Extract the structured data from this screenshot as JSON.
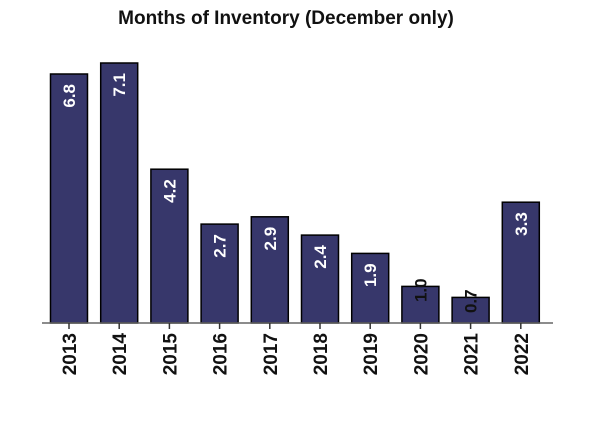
{
  "chart_data": {
    "type": "bar",
    "title": "Months of Inventory (December only)",
    "xlabel": "",
    "ylabel": "",
    "categories": [
      "2013",
      "2014",
      "2015",
      "2016",
      "2017",
      "2018",
      "2019",
      "2020",
      "2021",
      "2022"
    ],
    "values": [
      6.8,
      7.1,
      4.2,
      2.7,
      2.9,
      2.4,
      1.9,
      1.0,
      0.7,
      3.3
    ],
    "data_labels": [
      "6.8",
      "7.1",
      "4.2",
      "2.7",
      "2.9",
      "2.4",
      "1.9",
      "1.0",
      "0.7",
      "3.3"
    ],
    "ylim": [
      0,
      7.1
    ],
    "grid": false,
    "legend": "none",
    "bar_color": "#37376b",
    "inside_label_color": "#ffffff",
    "outside_label_color": "#111111"
  }
}
